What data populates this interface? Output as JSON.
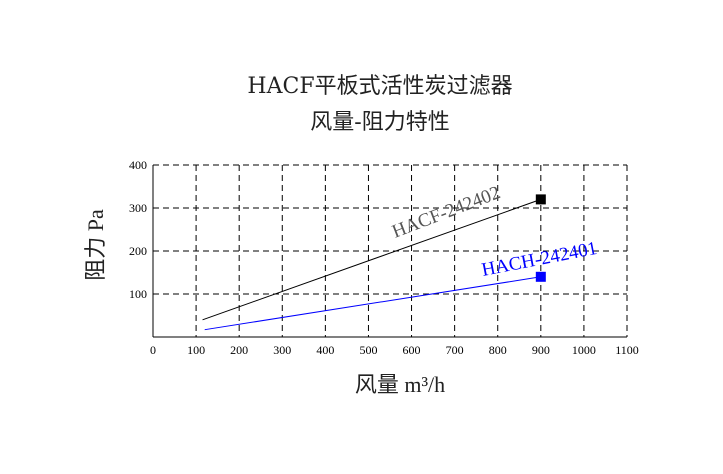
{
  "chart_data": {
    "type": "line",
    "title": "HACF平板式活性炭过滤器",
    "subtitle": "风量-阻力特性",
    "xlabel": "风量  m³/h",
    "ylabel": "阻力 Pa",
    "xlim": [
      0,
      1100
    ],
    "ylim": [
      0,
      400
    ],
    "xticks": [
      0,
      100,
      200,
      300,
      400,
      500,
      600,
      700,
      800,
      900,
      1000,
      1100
    ],
    "yticks": [
      100,
      200,
      300,
      400
    ],
    "grid": true,
    "series": [
      {
        "name": "HACF-242402",
        "color": "#000000",
        "x": [
          115,
          900
        ],
        "y": [
          40,
          320
        ]
      },
      {
        "name": "HACH-242401",
        "color": "#0000ff",
        "x": [
          120,
          900
        ],
        "y": [
          17,
          140
        ]
      }
    ]
  }
}
